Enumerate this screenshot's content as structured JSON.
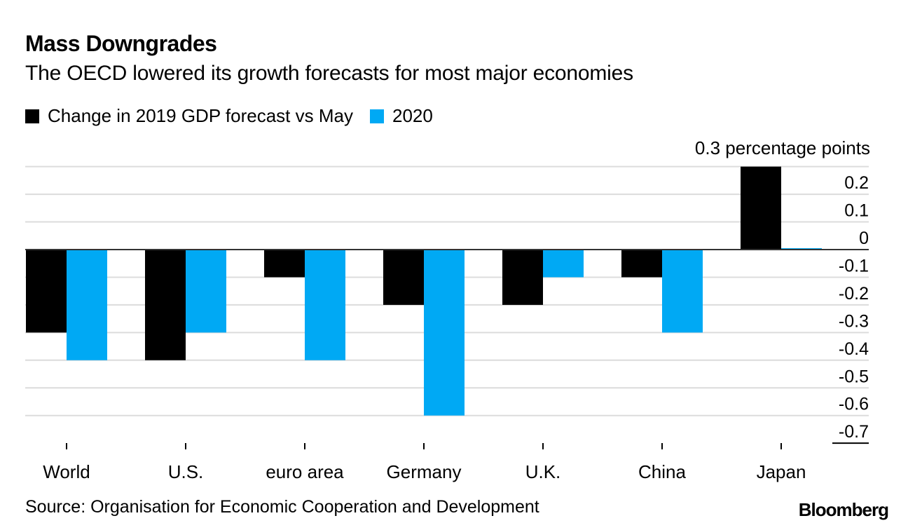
{
  "header": {
    "title": "Mass Downgrades",
    "subtitle": "The OECD lowered its growth forecasts for most major economies"
  },
  "footer": {
    "source": "Source: Organisation for Economic Cooperation and Development",
    "brand": "Bloomberg"
  },
  "colors": {
    "series_2019": "#000000",
    "series_2020": "#00a9f4",
    "grid": "#dcdcdc",
    "baseline": "#333333"
  },
  "chart_data": {
    "type": "bar",
    "title": "Mass Downgrades",
    "subtitle": "The OECD lowered its growth forecasts for most major economies",
    "xlabel": "",
    "ylabel": "percentage points",
    "unit_label": "0.3 percentage points",
    "categories": [
      "World",
      "U.S.",
      "euro area",
      "Germany",
      "U.K.",
      "China",
      "Japan"
    ],
    "series": [
      {
        "name": "Change in 2019 GDP forecast vs May",
        "color": "#000000",
        "values": [
          -0.3,
          -0.4,
          -0.1,
          -0.2,
          -0.2,
          -0.1,
          0.3
        ]
      },
      {
        "name": "2020",
        "color": "#00a9f4",
        "values": [
          -0.4,
          -0.3,
          -0.4,
          -0.6,
          -0.1,
          -0.3,
          0.0
        ]
      }
    ],
    "ylim": [
      -0.7,
      0.3
    ],
    "yticks": [
      0.2,
      0.1,
      0,
      -0.1,
      -0.2,
      -0.3,
      -0.4,
      -0.5,
      -0.6,
      -0.7
    ],
    "ytick_labels": [
      "0.2",
      "0.1",
      "0",
      "-0.1",
      "-0.2",
      "-0.3",
      "-0.4",
      "-0.5",
      "-0.6",
      "-0.7"
    ],
    "grid": true,
    "legend_position": "top-left",
    "y_axis_position": "right",
    "source": "Source: Organisation for Economic Cooperation and Development"
  }
}
